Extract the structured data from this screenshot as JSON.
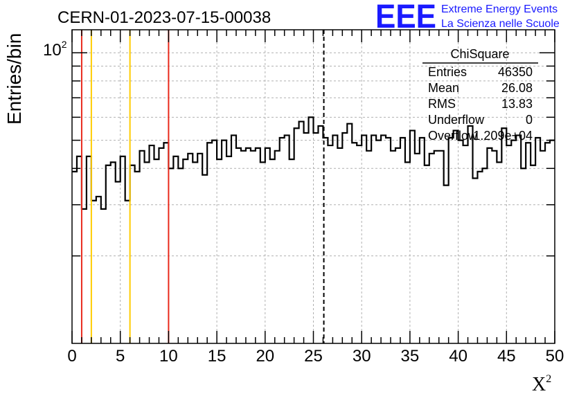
{
  "header": {
    "run_id": "CERN-01-2023-07-15-00038"
  },
  "logo": {
    "mark": "EEE",
    "line1": "Extreme Energy Events",
    "line2": "La Scienza nelle Scuole",
    "color": "#1a1aff"
  },
  "stats_box": {
    "title": "ChiSquare",
    "rows": [
      {
        "label": "Entries",
        "value": "46350"
      },
      {
        "label": "Mean",
        "value": "26.08"
      },
      {
        "label": "RMS",
        "value": "13.83"
      },
      {
        "label": "Underflow",
        "value": "0"
      },
      {
        "label": "Overflow",
        "value": "1.209e+04"
      }
    ]
  },
  "chart_data": {
    "type": "histogram",
    "title": "CERN-01-2023-07-15-00038",
    "xlabel": "X²",
    "ylabel": "Entries/bin",
    "x_range": [
      0,
      50
    ],
    "y_scale": "log",
    "y_range": [
      10,
      120
    ],
    "x_ticks": [
      0,
      5,
      10,
      15,
      20,
      25,
      30,
      35,
      40,
      45,
      50
    ],
    "y_tick_label": {
      "base": "10",
      "exp": "2",
      "value": 100
    },
    "grid": true,
    "bin_width": 0.5,
    "bin_contents": [
      39,
      44,
      29,
      44,
      31,
      32,
      29,
      41,
      42,
      36,
      44,
      31,
      41,
      39,
      46,
      42,
      48,
      43,
      47,
      49,
      40,
      44,
      40,
      43,
      45,
      42,
      45,
      38,
      49,
      50,
      43,
      50,
      44,
      52,
      47,
      46,
      47,
      46,
      47,
      42,
      47,
      43,
      46,
      51,
      52,
      43,
      55,
      58,
      53,
      60,
      53,
      56,
      51,
      48,
      52,
      47,
      53,
      57,
      49,
      48,
      52,
      46,
      52,
      50,
      52,
      51,
      46,
      47,
      51,
      42,
      54,
      45,
      51,
      41,
      45,
      46,
      46,
      35,
      51,
      54,
      50,
      48,
      56,
      37,
      39,
      40,
      47,
      46,
      42,
      55,
      48,
      50,
      52,
      40,
      49,
      41,
      51,
      46,
      49,
      50
    ],
    "vertical_lines": [
      {
        "x": 1,
        "color": "#e8291c",
        "style": "solid"
      },
      {
        "x": 2,
        "color": "#ffcc00",
        "style": "solid"
      },
      {
        "x": 6,
        "color": "#ffcc00",
        "style": "solid"
      },
      {
        "x": 10,
        "color": "#e8291c",
        "style": "solid"
      },
      {
        "x": 26.08,
        "color": "#000000",
        "style": "dashed"
      }
    ]
  }
}
